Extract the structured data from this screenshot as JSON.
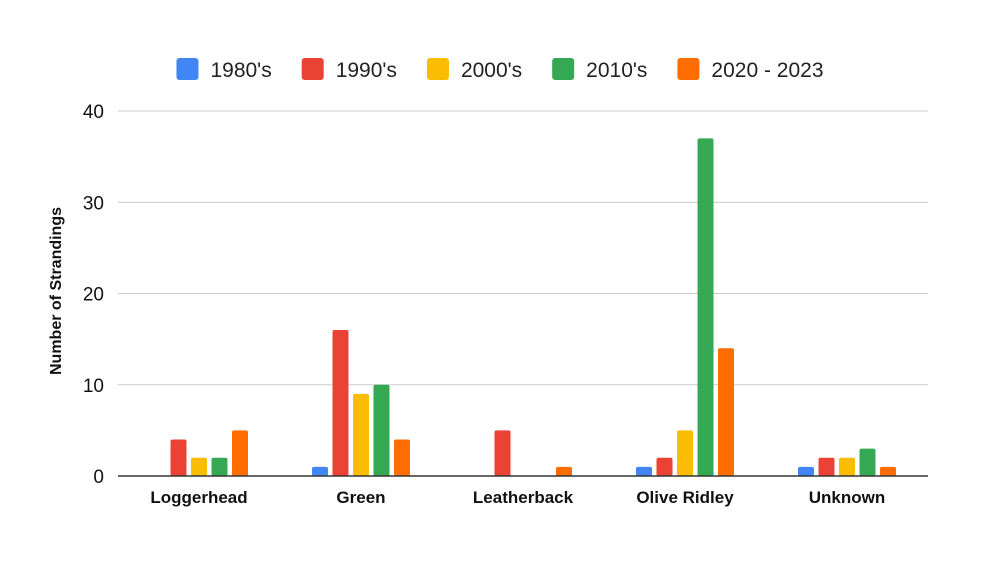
{
  "chart_data": {
    "type": "bar",
    "ylabel": "Number of Strandings",
    "xlabel": "",
    "ylim": [
      0,
      40
    ],
    "yticks": [
      "0",
      "10",
      "20",
      "30",
      "40"
    ],
    "grid": true,
    "legend_position": "top",
    "categories": [
      "Loggerhead",
      "Green",
      "Leatherback",
      "Olive Ridley",
      "Unknown"
    ],
    "series": [
      {
        "name": "1980's",
        "color": "#4285F4",
        "values": [
          0,
          1,
          0,
          1,
          1
        ]
      },
      {
        "name": "1990's",
        "color": "#EA4335",
        "values": [
          4,
          16,
          5,
          2,
          2
        ]
      },
      {
        "name": "2000's",
        "color": "#FBBC04",
        "values": [
          2,
          9,
          0,
          5,
          2
        ]
      },
      {
        "name": "2010's",
        "color": "#34A853",
        "values": [
          2,
          10,
          0,
          37,
          3
        ]
      },
      {
        "name": "2020 - 2023",
        "color": "#FF6D01",
        "values": [
          5,
          4,
          1,
          14,
          1
        ]
      }
    ]
  }
}
